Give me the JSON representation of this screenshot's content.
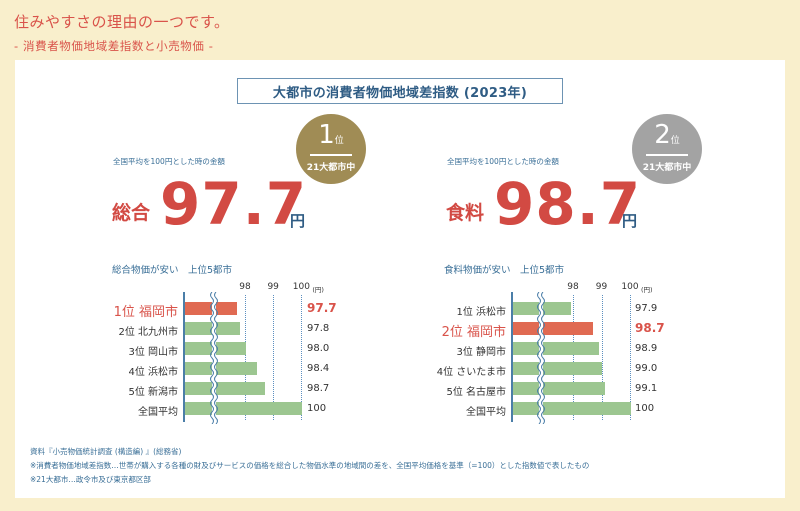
{
  "header": {
    "headline": "住みやすさの理由の一つです。",
    "subline": "- 消費者物価地域差指数と小売物価 -"
  },
  "panel": {
    "title": "大都市の消費者物価地域差指数 (2023年)"
  },
  "summary": {
    "total": {
      "note": "全国平均を100円とした時の金額",
      "category": "総合",
      "value": "97.7",
      "unit": "円",
      "rank": "1",
      "rank_suffix": "位",
      "rank_of": "21大都市中",
      "badge_color": "#a08c55"
    },
    "food": {
      "note": "全国平均を100円とした時の金額",
      "category": "食料",
      "value": "98.7",
      "unit": "円",
      "rank": "2",
      "rank_suffix": "位",
      "rank_of": "21大都市中",
      "badge_color": "#a3a3a3"
    }
  },
  "colors": {
    "accent_red": "#d24a43",
    "bar_green": "#9cc690",
    "bar_highlight": "#e06a52",
    "text_blue": "#2f5c84"
  },
  "chart_data": [
    {
      "type": "bar",
      "title": "総合物価が安い　上位5都市",
      "orientation": "horizontal",
      "categories": [
        "1位 福岡市",
        "2位 北九州市",
        "3位 岡山市",
        "4位 浜松市",
        "5位 新潟市",
        "全国平均"
      ],
      "values": [
        97.7,
        97.8,
        98.0,
        98.4,
        98.7,
        100
      ],
      "value_labels": [
        "97.7",
        "97.8",
        "98.0",
        "98.4",
        "98.7",
        "100"
      ],
      "highlight_index": 0,
      "x_ticks": [
        "98",
        "99",
        "100"
      ],
      "x_unit": "(円)",
      "xlim": [
        95.8,
        100
      ],
      "axis_break": true,
      "grid": true
    },
    {
      "type": "bar",
      "title": "食料物価が安い　上位5都市",
      "orientation": "horizontal",
      "categories": [
        "1位 浜松市",
        "2位 福岡市",
        "3位 静岡市",
        "4位 さいたま市",
        "5位 名古屋市",
        "全国平均"
      ],
      "values": [
        97.9,
        98.7,
        98.9,
        99.0,
        99.1,
        100
      ],
      "value_labels": [
        "97.9",
        "98.7",
        "98.9",
        "99.0",
        "99.1",
        "100"
      ],
      "highlight_index": 1,
      "x_ticks": [
        "98",
        "99",
        "100"
      ],
      "x_unit": "(円)",
      "xlim": [
        95.8,
        100
      ],
      "axis_break": true,
      "grid": true
    }
  ],
  "footnotes": [
    "資料『小売物価統計調査 (構造編) 』(総務省)",
    "※消費者物価地域差指数…世帯が購入する各種の財及びサービスの価格を総合した物価水準の地域間の差を、全国平均価格を基準（=100）とした指数値で表したもの",
    "※21大都市…政令市及び東京都区部"
  ]
}
